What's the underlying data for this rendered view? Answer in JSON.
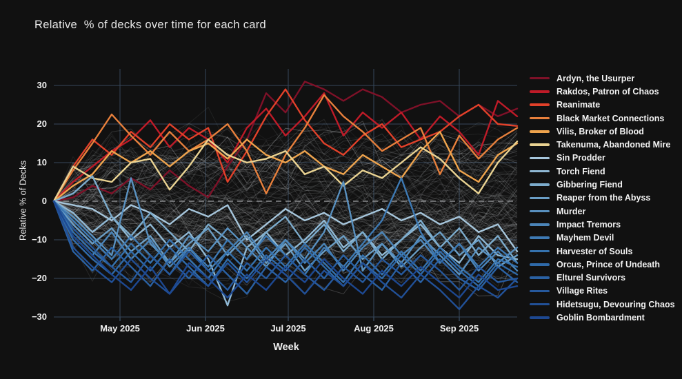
{
  "title": "Relative  % of decks over time for each card",
  "colors": {
    "background": "#111111",
    "grid": "#36485c",
    "zero_line": "#87898c",
    "tick_text": "#f0f0f0",
    "title_text": "#e8e8e8",
    "background_lines": "#dfe3e6"
  },
  "chart_data": {
    "type": "line",
    "title": "Relative  % of decks over time for each card",
    "xlabel": "Week",
    "ylabel": "Relative % of Decks",
    "x_tick_labels": [
      "May 2025",
      "Jun 2025",
      "Jul 2025",
      "Aug 2025",
      "Sep 2025"
    ],
    "y_ticks": [
      30,
      20,
      10,
      0,
      -10,
      -20,
      -30
    ],
    "y_tick_labels": [
      "30",
      "20",
      "10",
      "0",
      "−10",
      "−20",
      "−30"
    ],
    "ylim": [
      -31.5,
      34
    ],
    "grid": true,
    "legend_position": "right",
    "zero_line": "dashed",
    "points_per_series": 25,
    "background_series": {
      "count": 135,
      "seed": 42
    },
    "series": [
      {
        "name": "Ardyn, the Usurper",
        "color": "#7f1128",
        "values": [
          0,
          1,
          4,
          2,
          6,
          3,
          8,
          4,
          1,
          9,
          16,
          28,
          23,
          31,
          29,
          26,
          29,
          27,
          23,
          25,
          26,
          22,
          25,
          22,
          24
        ]
      },
      {
        "name": "Rakdos, Patron of Chaos",
        "color": "#bf1b28",
        "values": [
          0,
          5,
          9,
          13,
          16,
          21,
          14,
          19,
          16,
          10,
          19,
          24,
          17,
          22,
          28,
          17,
          23,
          19,
          23,
          16,
          22,
          18,
          12,
          26,
          22
        ]
      },
      {
        "name": "Reanimate",
        "color": "#e2412a",
        "values": [
          0,
          9,
          16,
          12,
          18,
          14,
          20,
          16,
          19,
          5,
          13,
          22,
          29,
          21,
          15,
          12,
          17,
          20,
          14,
          16,
          18,
          22,
          25,
          20,
          19.5
        ]
      },
      {
        "name": "Black Market Connections",
        "color": "#e8803c",
        "values": [
          0,
          8,
          15,
          22.5,
          17,
          12,
          18,
          13,
          16,
          20,
          13,
          2,
          12,
          19,
          27.5,
          22,
          18,
          13,
          16,
          19,
          7,
          17,
          11,
          16,
          19
        ]
      },
      {
        "name": "Vilis, Broker of Blood",
        "color": "#efa44d",
        "values": [
          0,
          4,
          7,
          13,
          10,
          13,
          9,
          13,
          15,
          11,
          16,
          12,
          10,
          13,
          9,
          7,
          12,
          9,
          6,
          13,
          18,
          8,
          5,
          12,
          15
        ]
      },
      {
        "name": "Takenuma, Abandoned Mire",
        "color": "#ead392",
        "values": [
          0,
          9,
          6,
          5,
          10,
          11,
          3,
          9,
          16,
          12,
          10,
          11,
          13,
          7,
          9,
          4,
          8,
          6,
          10,
          14,
          11,
          6,
          2,
          10,
          15.5
        ]
      },
      {
        "name": "Sin Prodder",
        "color": "#a6c6dc",
        "values": [
          0,
          -1,
          -2,
          -5,
          -1,
          -3,
          -6,
          -2,
          -4,
          -1,
          -10,
          -6,
          -2,
          -5,
          -3,
          -6,
          -4,
          -2,
          -5,
          -3,
          -6,
          -4,
          -8,
          -6,
          -13
        ]
      },
      {
        "name": "Torch Fiend",
        "color": "#8fb8d4",
        "values": [
          0,
          -3,
          -8,
          -4,
          -10,
          -6,
          -12,
          -8,
          -15,
          -27,
          -12,
          -8,
          -14,
          -10,
          -5,
          -12,
          -8,
          -14,
          -10,
          -6,
          -12,
          -16,
          -9,
          -14,
          -15
        ]
      },
      {
        "name": "Gibbering Fiend",
        "color": "#7caccd",
        "values": [
          0,
          2,
          6.5,
          -4,
          -9,
          -3,
          -8,
          -13,
          -6,
          -10,
          -15,
          -8,
          -4,
          -11,
          -6,
          -13,
          -8,
          -15,
          -10,
          -5,
          -12,
          -7,
          -14,
          -9,
          -16
        ]
      },
      {
        "name": "Reaper from the Abyss",
        "color": "#6a9ec6",
        "values": [
          0,
          -6,
          -11,
          -7,
          -13,
          -9,
          -16,
          -11,
          -7,
          -14,
          -9,
          -16,
          -11,
          -18,
          -13,
          -9,
          -15,
          -11,
          -17,
          -12,
          -8,
          -14,
          -10,
          -17,
          -14
        ]
      },
      {
        "name": "Murder",
        "color": "#5991c0",
        "values": [
          0,
          -4,
          -9,
          -14,
          6,
          -11,
          -16,
          -9,
          -13,
          -7,
          -12,
          -17,
          -10,
          -15,
          -8,
          5,
          -18,
          -11,
          -16,
          -9,
          -14,
          -19,
          -12,
          -16,
          -12
        ]
      },
      {
        "name": "Impact Tremors",
        "color": "#4b85b9",
        "values": [
          0,
          -9,
          -14,
          -8,
          -15,
          -10,
          -17,
          -12,
          -18,
          -13,
          -8,
          -15,
          -10,
          -16,
          -11,
          -18,
          -12,
          -8,
          -14,
          -10,
          -16,
          -11,
          -18,
          -13,
          -18
        ]
      },
      {
        "name": "Mayhem Devil",
        "color": "#3e7ab4",
        "values": [
          0,
          -5,
          -10,
          -15,
          -9,
          -14,
          -19,
          -12,
          -17,
          -10,
          -15,
          -9,
          -14,
          -19,
          -12,
          -17,
          -11,
          -5,
          6,
          -8,
          -16,
          -11,
          -17,
          -12,
          -16
        ]
      },
      {
        "name": "Harvester of Souls",
        "color": "#3572ae",
        "values": [
          0,
          -8,
          -13,
          -17,
          -11,
          -16,
          -10,
          -15,
          -20,
          -13,
          -18,
          -12,
          -17,
          -11,
          -16,
          -21,
          -14,
          -19,
          -13,
          -18,
          -12,
          -17,
          -21,
          -15,
          -17
        ]
      },
      {
        "name": "Orcus, Prince of Undeath",
        "color": "#2f6aa9",
        "values": [
          0,
          -10,
          -15,
          -19,
          -13,
          -18,
          -12,
          -17,
          -22,
          -15,
          -20,
          -14,
          -18,
          -12,
          -17,
          -22,
          -16,
          -20,
          -14,
          -19,
          -13,
          -18,
          -22,
          -16,
          -19
        ]
      },
      {
        "name": "Elturel Survivors",
        "color": "#2a61a3",
        "values": [
          0,
          -13,
          -18,
          -12,
          -17,
          -22,
          -15,
          -20,
          -14,
          -19,
          -24,
          -17,
          -21,
          -15,
          -20,
          -14,
          -19,
          -23,
          -16,
          -21,
          -15,
          -20,
          -23,
          -17,
          -21
        ]
      },
      {
        "name": "Village Rites",
        "color": "#26599d",
        "values": [
          0,
          -7,
          -12,
          -17,
          -21,
          -14,
          -19,
          -13,
          -18,
          -23,
          -16,
          -20,
          -14,
          -19,
          -23,
          -17,
          -21,
          -15,
          -19,
          -14,
          -18,
          -23,
          -17,
          -21,
          -20
        ]
      },
      {
        "name": "Hidetsugu, Devouring Chaos",
        "color": "#215097",
        "values": [
          0,
          -12,
          -17,
          -21,
          -15,
          -20,
          -24,
          -18,
          -22,
          -16,
          -21,
          -15,
          -19,
          -24,
          -18,
          -22,
          -16,
          -21,
          -25,
          -19,
          -23,
          -28,
          -22,
          -25,
          -20
        ]
      },
      {
        "name": "Goblin Bombardment",
        "color": "#1d4891",
        "values": [
          0,
          -9,
          -14,
          -19,
          -23,
          -17,
          -24,
          -16,
          -20,
          -25,
          -19,
          -23,
          -17,
          -21,
          -15,
          -20,
          -24,
          -18,
          -22,
          -17,
          -21,
          -25,
          -19,
          -23,
          -22
        ]
      }
    ]
  }
}
